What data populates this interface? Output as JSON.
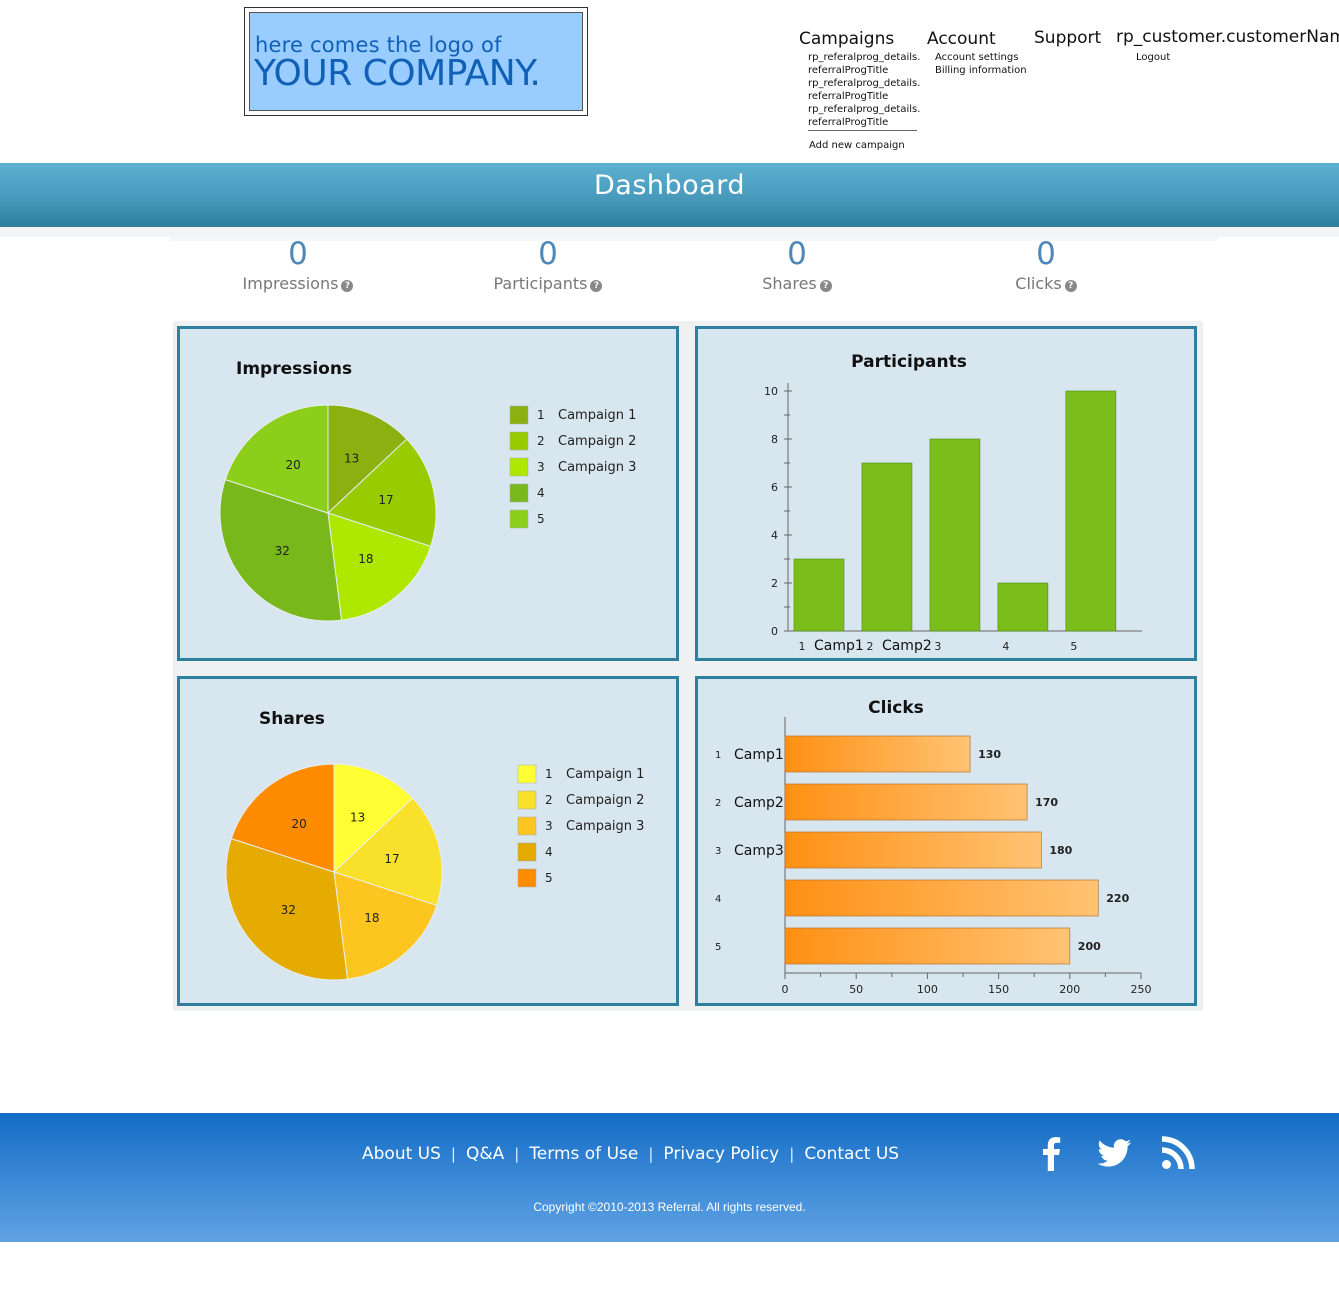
{
  "header": {
    "logo": {
      "line1": "here comes the logo of",
      "line2": "YOUR COMPANY."
    },
    "nav": {
      "campaigns": {
        "label": "Campaigns",
        "items": [
          "rp_referalprog_details.",
          "referralProgTitle",
          "rp_referalprog_details.",
          "referralProgTitle",
          "rp_referalprog_details.",
          "referralProgTitle"
        ],
        "add_new": "Add new campaign"
      },
      "account": {
        "label": "Account",
        "items": [
          "Account settings",
          "Billing information"
        ]
      },
      "support": {
        "label": "Support"
      },
      "user": {
        "label": "rp_customer.customerName",
        "logout": "Logout"
      }
    }
  },
  "banner": {
    "title": "Dashboard"
  },
  "stats": [
    {
      "value": "0",
      "label": "Impressions"
    },
    {
      "value": "0",
      "label": "Participants"
    },
    {
      "value": "0",
      "label": "Shares"
    },
    {
      "value": "0",
      "label": "Clicks"
    }
  ],
  "help_icon": "?",
  "colors": {
    "accent": "#2f7f9e",
    "impressions_slices": [
      "#8ab10f",
      "#99cc00",
      "#aee800",
      "#78b81a",
      "#8ccf1a"
    ],
    "shares_slices": [
      "#ffff33",
      "#f9e02a",
      "#fcc51f",
      "#e6ab00",
      "#ff8c00"
    ],
    "participants_bar": "#7bbd1a",
    "clicks_bar_start": "#ff9014",
    "clicks_bar_end": "#ffc373"
  },
  "charts": {
    "impressions": {
      "type": "pie",
      "title": "Impressions",
      "values": [
        13,
        17,
        18,
        32,
        20
      ],
      "legend": [
        {
          "num": "1",
          "name": "Campaign 1"
        },
        {
          "num": "2",
          "name": "Campaign 2"
        },
        {
          "num": "3",
          "name": "Campaign 3"
        },
        {
          "num": "4",
          "name": ""
        },
        {
          "num": "5",
          "name": ""
        }
      ]
    },
    "participants": {
      "type": "bar",
      "title": "Participants",
      "categories": [
        "1",
        "2",
        "3",
        "4",
        "5"
      ],
      "category_names": [
        "Camp1",
        "Camp2",
        "",
        "",
        ""
      ],
      "values": [
        3,
        7,
        8,
        2,
        10
      ],
      "ylim": [
        0,
        10
      ],
      "yticks": [
        0,
        2,
        4,
        6,
        8,
        10
      ]
    },
    "shares": {
      "type": "pie",
      "title": "Shares",
      "values": [
        13,
        17,
        18,
        32,
        20
      ],
      "legend": [
        {
          "num": "1",
          "name": "Campaign 1"
        },
        {
          "num": "2",
          "name": "Campaign 2"
        },
        {
          "num": "3",
          "name": "Campaign 3"
        },
        {
          "num": "4",
          "name": ""
        },
        {
          "num": "5",
          "name": ""
        }
      ]
    },
    "clicks": {
      "type": "bar",
      "orientation": "horizontal",
      "title": "Clicks",
      "categories": [
        "1",
        "2",
        "3",
        "4",
        "5"
      ],
      "category_names": [
        "Camp1",
        "Camp2",
        "Camp3",
        "",
        ""
      ],
      "values": [
        130,
        170,
        180,
        220,
        200
      ],
      "xlim": [
        0,
        250
      ],
      "xticks": [
        0,
        50,
        100,
        150,
        200,
        250
      ]
    }
  },
  "footer": {
    "links": [
      "About  US",
      "Q&A",
      "Terms of Use",
      "Privacy Policy",
      "Contact US"
    ],
    "separator": "|",
    "copyright": "Copyright ©2010-2013 Referral. All rights reserved.",
    "social": [
      "facebook-icon",
      "twitter-icon",
      "rss-icon"
    ]
  }
}
